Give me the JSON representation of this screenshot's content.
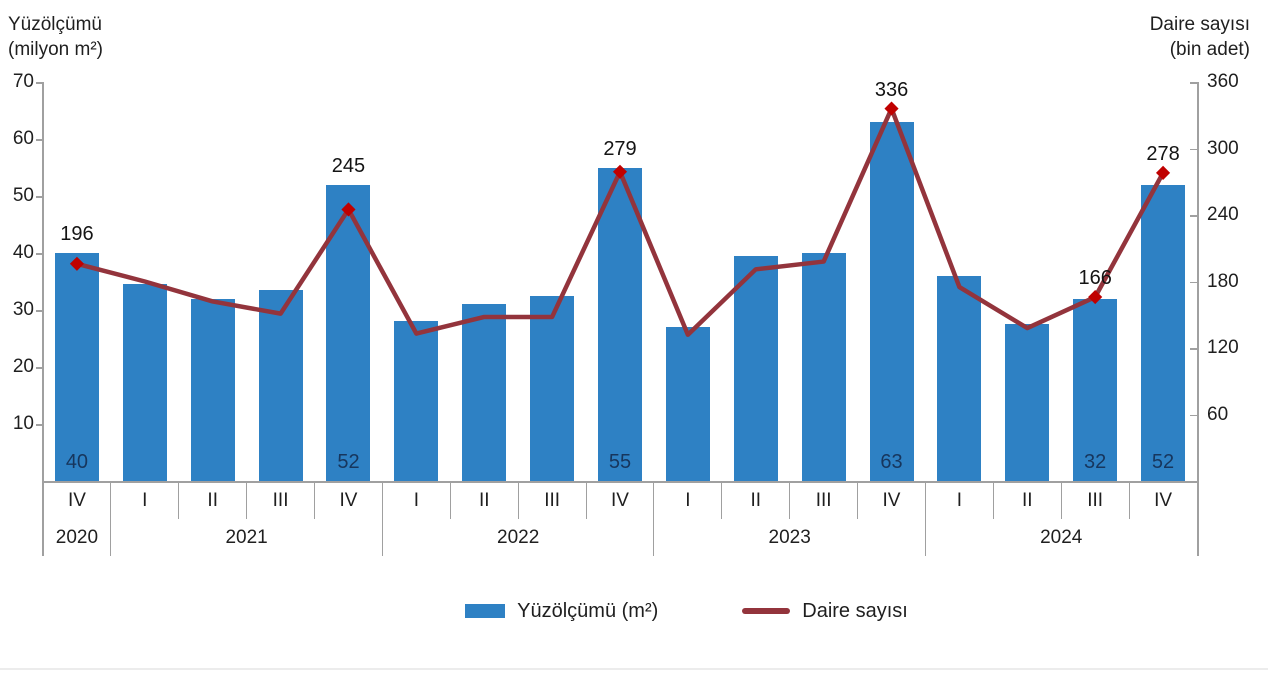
{
  "chart": {
    "left_axis": {
      "title_line1": "Yüzölçümü",
      "title_line2": "(milyon m²)",
      "ticks": [
        70,
        60,
        50,
        40,
        30,
        20,
        10
      ],
      "min": 0,
      "max": 70
    },
    "right_axis": {
      "title_line1": "Daire sayısı",
      "title_line2": "(bin adet)",
      "ticks": [
        360,
        300,
        240,
        180,
        120,
        60
      ],
      "min": 0,
      "max": 360
    },
    "legend": {
      "bar_label": "Yüzölçümü (m²)",
      "line_label": "Daire sayısı"
    },
    "colors": {
      "bar": "#2E81C4",
      "line": "#93343C",
      "marker": "#C00000",
      "bar_label_text": "#17365D",
      "axis": "#a0a0a0",
      "text": "#1f1f1f"
    }
  },
  "chart_data": {
    "type": "combo",
    "categories": [
      "IV",
      "I",
      "II",
      "III",
      "IV",
      "I",
      "II",
      "III",
      "IV",
      "I",
      "II",
      "III",
      "IV",
      "I",
      "II",
      "III",
      "IV"
    ],
    "year_groups": [
      {
        "label": "2020",
        "span": 1
      },
      {
        "label": "2021",
        "span": 4
      },
      {
        "label": "2022",
        "span": 4
      },
      {
        "label": "2023",
        "span": 4
      },
      {
        "label": "2024",
        "span": 4
      }
    ],
    "series": [
      {
        "name": "Yüzölçümü (m²)",
        "type": "bar",
        "axis": "left",
        "values": [
          40,
          34.5,
          32,
          33.5,
          52,
          28,
          31,
          32.5,
          55,
          27,
          39.5,
          40,
          63,
          36,
          27.5,
          32,
          52
        ],
        "labels": {
          "0": "40",
          "4": "52",
          "8": "55",
          "12": "63",
          "15": "32",
          "16": "52"
        }
      },
      {
        "name": "Daire sayısı",
        "type": "line",
        "axis": "right",
        "values": [
          196,
          180,
          162,
          151,
          245,
          133,
          148,
          148,
          279,
          132,
          191,
          198,
          336,
          175,
          138,
          166,
          278
        ],
        "labels": {
          "0": "196",
          "4": "245",
          "8": "279",
          "12": "336",
          "15": "166",
          "16": "278"
        }
      }
    ],
    "left_axis_range": [
      0,
      70
    ],
    "right_axis_range": [
      0,
      360
    ],
    "grid": false,
    "legend_position": "bottom"
  }
}
